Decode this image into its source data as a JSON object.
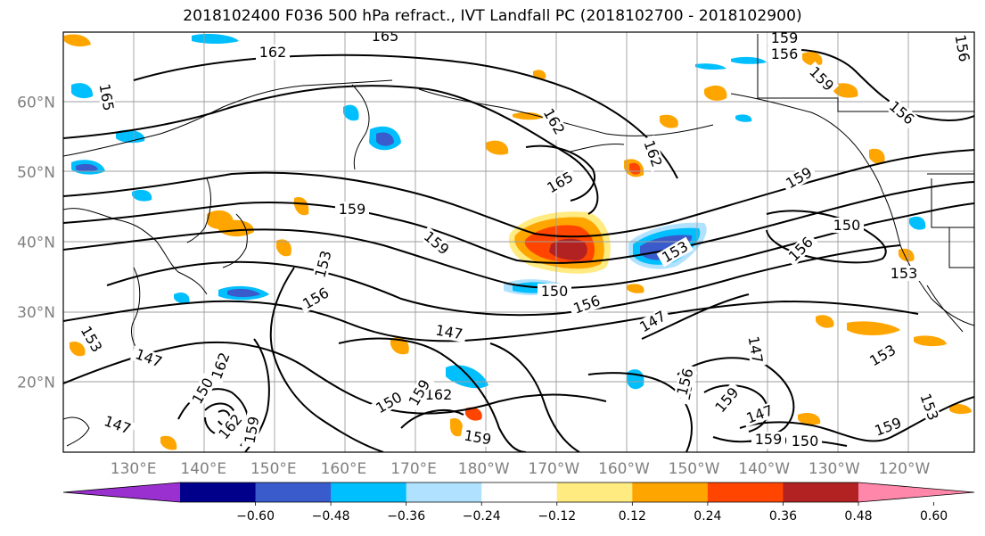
{
  "title": "2018102400 F036 500 hPa refract., IVT Landfall PC (2018102700 - 2018102900)",
  "map": {
    "lat_labels": [
      {
        "text": "60°N",
        "lat": 60
      },
      {
        "text": "50°N",
        "lat": 50
      },
      {
        "text": "40°N",
        "lat": 40
      },
      {
        "text": "30°N",
        "lat": 30
      },
      {
        "text": "20°N",
        "lat": 20
      }
    ],
    "lon_labels": [
      {
        "text": "130°E",
        "lon": 130
      },
      {
        "text": "140°E",
        "lon": 140
      },
      {
        "text": "150°E",
        "lon": 150
      },
      {
        "text": "160°E",
        "lon": 160
      },
      {
        "text": "170°E",
        "lon": 170
      },
      {
        "text": "180°W",
        "lon": 180
      },
      {
        "text": "170°W",
        "lon": 190
      },
      {
        "text": "160°W",
        "lon": 200
      },
      {
        "text": "150°W",
        "lon": 210
      },
      {
        "text": "140°W",
        "lon": 220
      },
      {
        "text": "130°W",
        "lon": 230
      },
      {
        "text": "120°W",
        "lon": 240
      }
    ],
    "contour_labels": [
      "165",
      "162",
      "165",
      "159",
      "156",
      "159",
      "156",
      "162",
      "162",
      "165",
      "159",
      "159",
      "156",
      "150",
      "159",
      "156",
      "153",
      "150",
      "156",
      "153",
      "156",
      "147",
      "147",
      "153",
      "147",
      "147",
      "147",
      "150",
      "162",
      "150",
      "156",
      "162",
      "159",
      "159",
      "156",
      "159",
      "147",
      "159",
      "150",
      "159",
      "153",
      "153",
      "162",
      "159",
      "159",
      "153"
    ]
  },
  "colorbar": {
    "ticks": [
      "−0.60",
      "−0.48",
      "−0.36",
      "−0.24",
      "−0.12",
      "0.12",
      "0.24",
      "0.36",
      "0.48",
      "0.60"
    ],
    "colors": [
      "#9b30d0",
      "#00008b",
      "#3a5bcc",
      "#00bfff",
      "#b0e2ff",
      "#ffffff",
      "#ffeb80",
      "#ffa500",
      "#ff4500",
      "#b22222",
      "#ff88aa"
    ]
  }
}
